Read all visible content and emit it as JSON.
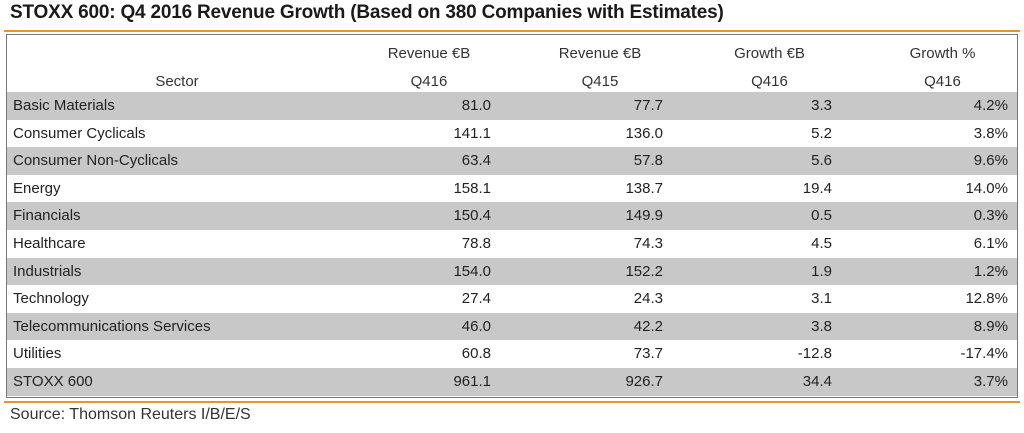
{
  "title": "STOXX 600: Q4 2016 Revenue Growth (Based on 380 Companies with Estimates)",
  "columns": {
    "sector": "Sector",
    "revenue_q416": [
      "Revenue €B",
      "Q416"
    ],
    "revenue_q415": [
      "Revenue €B",
      "Q415"
    ],
    "growth_eur": [
      "Growth €B",
      "Q416"
    ],
    "growth_pct": [
      "Growth %",
      "Q416"
    ]
  },
  "rows": [
    {
      "sector": "Basic Materials",
      "rev_q416": "81.0",
      "rev_q415": "77.7",
      "growth_eur": "3.3",
      "growth_pct": "4.2%"
    },
    {
      "sector": "Consumer Cyclicals",
      "rev_q416": "141.1",
      "rev_q415": "136.0",
      "growth_eur": "5.2",
      "growth_pct": "3.8%"
    },
    {
      "sector": "Consumer Non-Cyclicals",
      "rev_q416": "63.4",
      "rev_q415": "57.8",
      "growth_eur": "5.6",
      "growth_pct": "9.6%"
    },
    {
      "sector": "Energy",
      "rev_q416": "158.1",
      "rev_q415": "138.7",
      "growth_eur": "19.4",
      "growth_pct": "14.0%"
    },
    {
      "sector": "Financials",
      "rev_q416": "150.4",
      "rev_q415": "149.9",
      "growth_eur": "0.5",
      "growth_pct": "0.3%"
    },
    {
      "sector": "Healthcare",
      "rev_q416": "78.8",
      "rev_q415": "74.3",
      "growth_eur": "4.5",
      "growth_pct": "6.1%"
    },
    {
      "sector": "Industrials",
      "rev_q416": "154.0",
      "rev_q415": "152.2",
      "growth_eur": "1.9",
      "growth_pct": "1.2%"
    },
    {
      "sector": "Technology",
      "rev_q416": "27.4",
      "rev_q415": "24.3",
      "growth_eur": "3.1",
      "growth_pct": "12.8%"
    },
    {
      "sector": "Telecommunications Services",
      "rev_q416": "46.0",
      "rev_q415": "42.2",
      "growth_eur": "3.8",
      "growth_pct": "8.9%"
    },
    {
      "sector": "Utilities",
      "rev_q416": "60.8",
      "rev_q415": "73.7",
      "growth_eur": "-12.8",
      "growth_pct": "-17.4%"
    }
  ],
  "total": {
    "sector": "STOXX 600",
    "rev_q416": "961.1",
    "rev_q415": "926.7",
    "growth_eur": "34.4",
    "growth_pct": "3.7%"
  },
  "source": "Source: Thomson Reuters I/B/E/S"
}
